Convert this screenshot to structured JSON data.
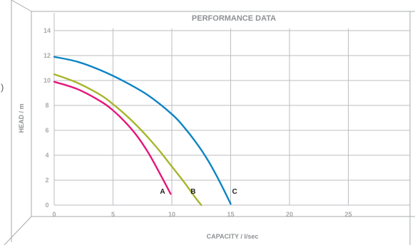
{
  "chart_data": {
    "type": "line",
    "title": "PERFORMANCE DATA",
    "xlabel": "CAPACITY / l/sec",
    "ylabel": "HEAD / m",
    "xlim": [
      0,
      30
    ],
    "ylim": [
      0,
      15
    ],
    "x_ticks": [
      0,
      5,
      10,
      15,
      20,
      25
    ],
    "y_ticks": [
      0,
      2,
      4,
      6,
      8,
      10,
      12,
      14
    ],
    "grid": true,
    "series": [
      {
        "name": "A",
        "color": "#e4177a",
        "points": [
          [
            0,
            9.9
          ],
          [
            2,
            9.3
          ],
          [
            4,
            8.3
          ],
          [
            5,
            7.6
          ],
          [
            6,
            6.7
          ],
          [
            7,
            5.6
          ],
          [
            8,
            4.2
          ],
          [
            9,
            2.5
          ],
          [
            9.9,
            0.9
          ]
        ]
      },
      {
        "name": "B",
        "color": "#a7b52c",
        "points": [
          [
            0,
            10.5
          ],
          [
            2,
            9.8
          ],
          [
            4,
            8.8
          ],
          [
            5,
            8.1
          ],
          [
            6,
            7.3
          ],
          [
            7,
            6.4
          ],
          [
            8,
            5.4
          ],
          [
            9,
            4.3
          ],
          [
            10,
            3.1
          ],
          [
            11,
            1.9
          ],
          [
            12,
            0.6
          ],
          [
            12.5,
            0
          ]
        ]
      },
      {
        "name": "C",
        "color": "#0d84c4",
        "points": [
          [
            0,
            11.9
          ],
          [
            2,
            11.5
          ],
          [
            4,
            10.8
          ],
          [
            6,
            9.9
          ],
          [
            8,
            8.8
          ],
          [
            10,
            7.3
          ],
          [
            11,
            6.3
          ],
          [
            12,
            5.1
          ],
          [
            13,
            3.7
          ],
          [
            14,
            2.0
          ],
          [
            15,
            0.1
          ]
        ]
      }
    ]
  },
  "stray_glyph": ")"
}
